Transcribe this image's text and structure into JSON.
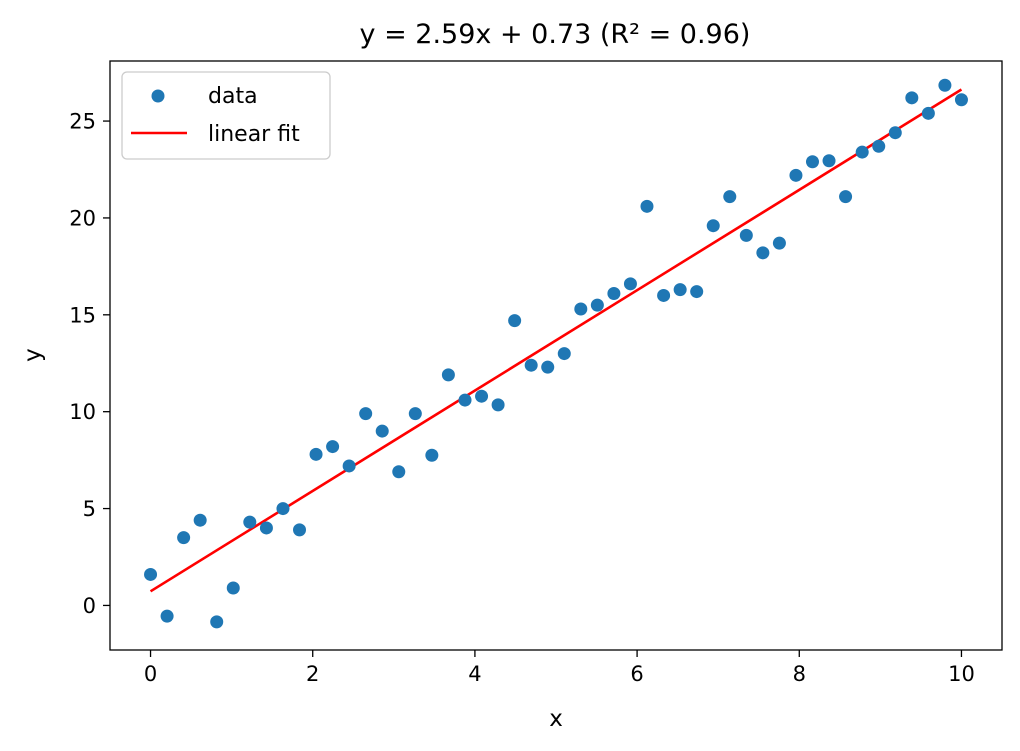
{
  "chart_data": {
    "type": "scatter",
    "title": "y = 2.59x + 0.73 (R² = 0.96)",
    "xlabel": "x",
    "ylabel": "y",
    "xlim": [
      -0.5,
      10.5
    ],
    "ylim": [
      -2.3,
      28.1
    ],
    "xticks": [
      0,
      2,
      4,
      6,
      8,
      10
    ],
    "yticks": [
      0,
      5,
      10,
      15,
      20,
      25
    ],
    "grid": false,
    "legend_position": "upper-left",
    "series": [
      {
        "name": "data",
        "kind": "scatter",
        "color": "#1f77b4",
        "x": [
          0.0,
          0.204,
          0.408,
          0.612,
          0.816,
          1.02,
          1.224,
          1.429,
          1.633,
          1.837,
          2.041,
          2.245,
          2.449,
          2.653,
          2.857,
          3.061,
          3.265,
          3.469,
          3.673,
          3.878,
          4.082,
          4.286,
          4.49,
          4.694,
          4.898,
          5.102,
          5.306,
          5.51,
          5.714,
          5.918,
          6.122,
          6.327,
          6.531,
          6.735,
          6.939,
          7.143,
          7.347,
          7.551,
          7.755,
          7.959,
          8.163,
          8.367,
          8.571,
          8.776,
          8.98,
          9.184,
          9.388,
          9.592,
          9.796,
          10.0
        ],
        "y": [
          1.6,
          -0.55,
          3.5,
          4.4,
          -0.85,
          0.9,
          4.3,
          4.0,
          5.0,
          3.9,
          7.8,
          8.2,
          7.2,
          9.9,
          9.0,
          6.9,
          9.9,
          7.75,
          11.9,
          10.6,
          10.8,
          10.35,
          14.7,
          12.4,
          12.3,
          13.0,
          15.3,
          15.5,
          16.1,
          16.6,
          20.6,
          16.0,
          16.3,
          16.2,
          19.6,
          21.1,
          19.1,
          18.2,
          18.7,
          22.2,
          22.9,
          22.95,
          21.1,
          23.4,
          23.7,
          24.4,
          26.2,
          25.4,
          26.85,
          26.1
        ]
      },
      {
        "name": "linear fit",
        "kind": "line",
        "color": "#ff0000",
        "x": [
          0,
          10
        ],
        "y": [
          0.73,
          26.63
        ]
      }
    ]
  }
}
